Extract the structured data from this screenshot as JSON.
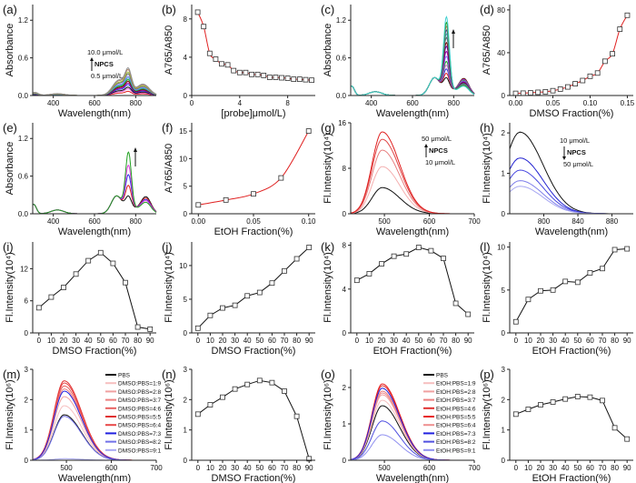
{
  "chart_data": [
    {
      "label": "(a)",
      "type": "line",
      "xlabel": "Wavelength(nm)",
      "ylabel": "Absorbance",
      "xlim": [
        300,
        900
      ],
      "ylim": [
        0,
        1.45
      ],
      "xticks": [
        "400",
        "600",
        "800"
      ],
      "yticks": [
        "0.0",
        "0.6",
        "1.2"
      ],
      "shape": "abs-broad",
      "series": [
        {
          "peak": 0.05,
          "color": "#e02020"
        },
        {
          "peak": 0.08,
          "color": "#e060e0"
        },
        {
          "peak": 0.1,
          "color": "#101010"
        },
        {
          "peak": 0.13,
          "color": "#3030e0"
        },
        {
          "peak": 0.15,
          "color": "#a000a0"
        },
        {
          "peak": 0.17,
          "color": "#800000"
        },
        {
          "peak": 0.19,
          "color": "#20a020"
        },
        {
          "peak": 0.21,
          "color": "#30b0b0"
        },
        {
          "peak": 0.23,
          "color": "#8080ff"
        },
        {
          "peak": 0.26,
          "color": "#606060"
        },
        {
          "peak": 0.28,
          "color": "#a0c040"
        },
        {
          "peak": 0.31,
          "color": "#b08060"
        },
        {
          "peak": 0.33,
          "color": "#909090"
        }
      ],
      "annotation": {
        "top": "10.0 μmol/L",
        "middle": "NPCS",
        "bottom": "0.5 μmol/L",
        "arrow": "up"
      }
    },
    {
      "label": "(b)",
      "type": "scatter-fit",
      "xlabel": "[probe]μmol/L)",
      "ylabel": "A765/A850",
      "xlim": [
        0,
        10.3
      ],
      "ylim": [
        0,
        9.5
      ],
      "xticks": [
        "0",
        "4",
        "8"
      ],
      "yticks": [
        "0",
        "4",
        "8"
      ],
      "x": [
        0.5,
        1,
        1.5,
        2,
        2.5,
        3,
        3.5,
        4,
        4.5,
        5,
        5.5,
        6,
        6.5,
        7,
        7.5,
        8,
        8.5,
        9,
        9.5,
        10
      ],
      "y": [
        8.7,
        7.2,
        4.4,
        3.8,
        3.3,
        3.2,
        2.6,
        2.4,
        2.4,
        2.2,
        2.2,
        2.1,
        1.9,
        1.9,
        1.85,
        1.8,
        1.7,
        1.7,
        1.65,
        1.6
      ],
      "fit_color": "#e02020"
    },
    {
      "label": "(c)",
      "type": "line",
      "xlabel": "Wavelength(nm)",
      "ylabel": "Absorbance",
      "xlim": [
        300,
        900
      ],
      "ylim": [
        0,
        1.45
      ],
      "xticks": [
        "400",
        "600",
        "800"
      ],
      "yticks": [
        "0.0",
        "0.6",
        "1.2"
      ],
      "shape": "abs-sharp",
      "series": [
        {
          "peak": 0.38,
          "color": "#101010"
        },
        {
          "peak": 0.45,
          "color": "#e02020"
        },
        {
          "peak": 0.52,
          "color": "#3030e0"
        },
        {
          "peak": 0.58,
          "color": "#e060e0"
        },
        {
          "peak": 0.64,
          "color": "#20a020"
        },
        {
          "peak": 0.72,
          "color": "#8080ff"
        },
        {
          "peak": 0.8,
          "color": "#a000a0"
        },
        {
          "peak": 0.88,
          "color": "#6000c0"
        },
        {
          "peak": 0.94,
          "color": "#800000"
        },
        {
          "peak": 1.02,
          "color": "#606060"
        },
        {
          "peak": 1.08,
          "color": "#30b0b0"
        },
        {
          "peak": 1.14,
          "color": "#3050a0"
        },
        {
          "peak": 1.2,
          "color": "#b08060"
        },
        {
          "peak": 1.26,
          "color": "#20a020"
        },
        {
          "peak": 1.35,
          "color": "#40d0d0"
        }
      ],
      "annotation": {
        "arrow": "up"
      }
    },
    {
      "label": "(d)",
      "type": "scatter-fit",
      "xlabel": "DMSO Fraction(%)",
      "ylabel": "A765/A850",
      "xlim": [
        -0.008,
        0.158
      ],
      "ylim": [
        0,
        85
      ],
      "xticks": [
        "0.00",
        "0.05",
        "0.10",
        "0.15"
      ],
      "xtickvals": [
        0,
        0.05,
        0.1,
        0.15
      ],
      "yticks": [
        "0",
        "40",
        "80"
      ],
      "x": [
        0,
        0.01,
        0.02,
        0.03,
        0.04,
        0.05,
        0.06,
        0.07,
        0.08,
        0.09,
        0.1,
        0.11,
        0.12,
        0.13,
        0.14,
        0.15
      ],
      "y": [
        2,
        2.2,
        2.5,
        3,
        3.5,
        4.5,
        6,
        8,
        11,
        14,
        18,
        21,
        32,
        39,
        62,
        75
      ],
      "fit_color": "#e02020"
    },
    {
      "label": "(e)",
      "type": "line",
      "xlabel": "Wavelength(nm)",
      "ylabel": "Absorbance",
      "xlim": [
        300,
        900
      ],
      "ylim": [
        0,
        1.45
      ],
      "xticks": [
        "400",
        "600",
        "800"
      ],
      "yticks": [
        "0.0",
        "0.6",
        "1.2"
      ],
      "shape": "abs-sharp",
      "series": [
        {
          "peak": 0.38,
          "color": "#101010"
        },
        {
          "peak": 0.55,
          "color": "#e02020"
        },
        {
          "peak": 0.72,
          "color": "#3030e0"
        },
        {
          "peak": 0.87,
          "color": "#e040e0"
        },
        {
          "peak": 1.08,
          "color": "#20a020"
        }
      ],
      "annotation": {
        "arrow": "up"
      }
    },
    {
      "label": "(f)",
      "type": "scatter-fit",
      "xlabel": "EtOH Fraction(%)",
      "ylabel": "A765/A850",
      "xlim": [
        -0.006,
        0.106
      ],
      "ylim": [
        0,
        16.5
      ],
      "xticks": [
        "0.00",
        "0.05",
        "0.10"
      ],
      "xtickvals": [
        0,
        0.05,
        0.1
      ],
      "yticks": [
        "0",
        "5",
        "10",
        "15"
      ],
      "x": [
        0,
        0.025,
        0.05,
        0.075,
        0.1
      ],
      "y": [
        1.6,
        2.5,
        3.6,
        6.5,
        15
      ],
      "fit_color": "#e02020"
    },
    {
      "label": "(g)",
      "type": "line",
      "xlabel": "Wavelength(nm)",
      "ylabel": "Fl.Intensity(10⁴)",
      "xlim": [
        425,
        700
      ],
      "ylim": [
        0,
        16
      ],
      "xticks": [
        "500",
        "600",
        "700"
      ],
      "yticks": [
        "0",
        "8",
        "16"
      ],
      "shape": "fl-495",
      "series": [
        {
          "peak": 4.6,
          "color": "#101010"
        },
        {
          "peak": 8.3,
          "color": "#f4b0b0"
        },
        {
          "peak": 11.2,
          "color": "#e88080"
        },
        {
          "peak": 13.1,
          "color": "#e04848"
        },
        {
          "peak": 14.4,
          "color": "#e02020"
        }
      ],
      "annotation": {
        "top": "50 μmol/L",
        "middle": "NPCS",
        "bottom": "10 μmol/L",
        "arrow": "up"
      }
    },
    {
      "label": "(h)",
      "type": "line",
      "xlabel": "Wavelength(nm)",
      "ylabel": "Fl.Intensity(10⁴)",
      "xlim": [
        760,
        905
      ],
      "ylim": [
        0,
        2.25
      ],
      "xticks": [
        "800",
        "840",
        "880"
      ],
      "yticks": [
        "0",
        "1",
        "2"
      ],
      "shape": "fl-770",
      "series": [
        {
          "peak": 2.02,
          "color": "#101010"
        },
        {
          "peak": 1.38,
          "color": "#2020d0"
        },
        {
          "peak": 1.08,
          "color": "#4848e0"
        },
        {
          "peak": 0.82,
          "color": "#8080ea"
        },
        {
          "peak": 0.68,
          "color": "#a8a8f2"
        }
      ],
      "annotation": {
        "top": "10 μmol/L",
        "middle": "NPCS",
        "bottom": "50 μmol/L",
        "arrow": "down"
      }
    },
    {
      "label": "(i)",
      "type": "point-line",
      "xlabel": "DMSO Fraction(%)",
      "ylabel": "Fl.Intensity(10⁴)",
      "xlim": [
        -5,
        95
      ],
      "ylim": [
        0,
        17
      ],
      "yticks": [
        "0",
        "6",
        "12"
      ],
      "x": [
        0,
        10,
        20,
        30,
        40,
        50,
        60,
        70,
        80,
        90
      ],
      "y": [
        4.7,
        6.7,
        8.5,
        11,
        13.5,
        15,
        13,
        9.4,
        1.1,
        0.7
      ]
    },
    {
      "label": "(j)",
      "type": "point-line",
      "xlabel": "DMSO Fraction(%)",
      "ylabel": "Fl.Intensity(10⁴)",
      "xlim": [
        -5,
        95
      ],
      "ylim": [
        0,
        13.5
      ],
      "yticks": [
        "0",
        "5",
        "10"
      ],
      "x": [
        0,
        10,
        20,
        30,
        40,
        50,
        60,
        70,
        80,
        90
      ],
      "y": [
        0.7,
        2.6,
        3.7,
        4.1,
        5.5,
        6.0,
        7.4,
        9.2,
        11,
        12.7
      ]
    },
    {
      "label": "(k)",
      "type": "point-line",
      "xlabel": "EtOH Fraction(%)",
      "ylabel": "Fl.Intensity(10⁴)",
      "xlim": [
        -5,
        95
      ],
      "ylim": [
        0,
        8.3
      ],
      "yticks": [
        "0",
        "4",
        "8"
      ],
      "x": [
        0,
        10,
        20,
        30,
        40,
        50,
        60,
        70,
        80,
        90
      ],
      "y": [
        4.8,
        5.4,
        6.3,
        7.0,
        7.2,
        7.8,
        7.5,
        6.8,
        2.7,
        1.7
      ]
    },
    {
      "label": "(l)",
      "type": "point-line",
      "xlabel": "EtOH Fraction(%)",
      "ylabel": "Fl.Intensity(10⁴)",
      "xlim": [
        -5,
        95
      ],
      "ylim": [
        0,
        10.6
      ],
      "yticks": [
        "0",
        "5",
        "10"
      ],
      "x": [
        0,
        10,
        20,
        30,
        40,
        50,
        60,
        70,
        80,
        90
      ],
      "y": [
        1.3,
        3.9,
        4.9,
        5.0,
        6.0,
        5.9,
        7.0,
        7.5,
        9.7,
        9.8
      ]
    },
    {
      "label": "(m)",
      "type": "line",
      "xlabel": "Wavelength(nm)",
      "ylabel": "Fl.Intensity(10⁶)",
      "xlim": [
        425,
        700
      ],
      "ylim": [
        0,
        3
      ],
      "xticks": [
        "500",
        "600",
        "700"
      ],
      "yticks": [
        "0",
        "1",
        "2",
        "3"
      ],
      "shape": "fl-495",
      "legend": "top-right",
      "series": [
        {
          "name": "PBS",
          "peak": 1.5,
          "color": "#101010"
        },
        {
          "name": "DMSO:PBS=1:9",
          "peak": 1.8,
          "color": "#f6c0c0"
        },
        {
          "name": "DMSO:PBS=2:8",
          "peak": 2.1,
          "color": "#f0a0a0"
        },
        {
          "name": "DMSO:PBS=3:7",
          "peak": 2.35,
          "color": "#ec8080"
        },
        {
          "name": "DMSO:PBS=4:6",
          "peak": 2.45,
          "color": "#e86060"
        },
        {
          "name": "DMSO:PBS=5:5",
          "peak": 2.62,
          "color": "#e03030"
        },
        {
          "name": "DMSO:PBS=6:4",
          "peak": 2.55,
          "color": "#e84848"
        },
        {
          "name": "DMSO:PBS=7:3",
          "peak": 2.28,
          "color": "#2020e0"
        },
        {
          "name": "DMSO:PBS=8:2",
          "peak": 1.45,
          "color": "#7070e8"
        },
        {
          "name": "DMSO:PBS=9:1",
          "peak": 0.05,
          "color": "#a8a8f4"
        }
      ]
    },
    {
      "label": "(n)",
      "type": "point-line",
      "xlabel": "DMSO Fraction(%)",
      "ylabel": "Fl.Intensity(10⁶)",
      "xlim": [
        -5,
        95
      ],
      "ylim": [
        0,
        3
      ],
      "yticks": [
        "0",
        "1",
        "2",
        "3"
      ],
      "x": [
        0,
        10,
        20,
        30,
        40,
        50,
        60,
        70,
        80,
        90
      ],
      "y": [
        1.52,
        1.83,
        2.08,
        2.35,
        2.5,
        2.63,
        2.56,
        2.28,
        1.45,
        0.05
      ]
    },
    {
      "label": "(o)",
      "type": "line",
      "xlabel": "Wavelength(nm)",
      "ylabel": "Fl.Intensity(10⁶)",
      "xlim": [
        425,
        700
      ],
      "ylim": [
        0,
        2.5
      ],
      "xticks": [
        "500",
        "600",
        "700"
      ],
      "yticks": [
        "0",
        "1",
        "2"
      ],
      "shape": "fl-495",
      "legend": "top-right",
      "series": [
        {
          "name": "PBS",
          "peak": 1.5,
          "color": "#101010"
        },
        {
          "name": "EtOH:PBS=1:9",
          "peak": 1.65,
          "color": "#f6c0c0"
        },
        {
          "name": "EtOH:PBS=2:8",
          "peak": 1.8,
          "color": "#f0a0a0"
        },
        {
          "name": "EtOH:PBS=3:7",
          "peak": 1.9,
          "color": "#ec8080"
        },
        {
          "name": "EtOH:PBS=4:6",
          "peak": 2.05,
          "color": "#e03030"
        },
        {
          "name": "EtOH:PBS=5:5",
          "peak": 2.1,
          "color": "#e82020"
        },
        {
          "name": "EtOH:PBS=6:4",
          "peak": 1.85,
          "color": "#ee9090"
        },
        {
          "name": "EtOH:PBS=7:3",
          "peak": 1.98,
          "color": "#2020e0"
        },
        {
          "name": "EtOH:PBS=8:2",
          "peak": 1.08,
          "color": "#5050e0"
        },
        {
          "name": "EtOH:PBS=9:1",
          "peak": 0.7,
          "color": "#9090f0"
        }
      ]
    },
    {
      "label": "(p)",
      "type": "point-line",
      "xlabel": "EtOH Fraction(%)",
      "ylabel": "Fl.Intensity(10⁶)",
      "xlim": [
        -5,
        95
      ],
      "ylim": [
        0,
        3
      ],
      "yticks": [
        "0",
        "1",
        "2",
        "3"
      ],
      "x": [
        0,
        10,
        20,
        30,
        40,
        50,
        60,
        70,
        80,
        90
      ],
      "y": [
        1.52,
        1.68,
        1.83,
        1.92,
        2.02,
        2.1,
        2.08,
        1.97,
        1.07,
        0.7
      ]
    }
  ]
}
